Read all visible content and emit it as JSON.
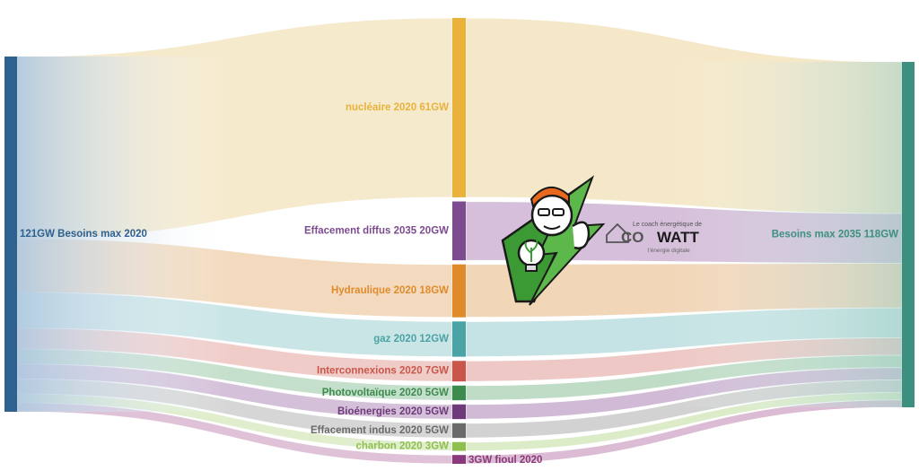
{
  "chart_data": {
    "type": "sankey",
    "source": {
      "label": "121GW Besoins max 2020",
      "value": 121,
      "color": "#2e6190"
    },
    "target": {
      "label": "Besoins max 2035 118GW",
      "value": 118,
      "color": "#3d8f80"
    },
    "nodes": [
      {
        "label": "nucléaire 2020 61GW",
        "value": 61,
        "color": "#e8b23b",
        "flow_color": "#efd9a4",
        "source_flow": true
      },
      {
        "label": "Effacement diffus 2035 20GW",
        "value": 20,
        "color": "#7d4b8f",
        "flow_color": "#b995c2",
        "source_flow": false
      },
      {
        "label": "Hydraulique 2020 18GW",
        "value": 18,
        "color": "#df8b2b",
        "flow_color": "#e9bb88",
        "source_flow": true
      },
      {
        "label": "gaz 2020 12GW",
        "value": 12,
        "color": "#4aa3a5",
        "flow_color": "#9fd0d2",
        "source_flow": true
      },
      {
        "label": "Interconnexions 2020 7GW",
        "value": 7,
        "color": "#c9564a",
        "flow_color": "#e3a39c",
        "source_flow": true
      },
      {
        "label": "Photovoltaïque 2020 5GW",
        "value": 5,
        "color": "#3d8b4e",
        "flow_color": "#94c4a0",
        "source_flow": true
      },
      {
        "label": "Bioénergies 2020 5GW",
        "value": 5,
        "color": "#6e3a7a",
        "flow_color": "#b08cba",
        "source_flow": true
      },
      {
        "label": "Effacement indus 2020 5GW",
        "value": 5,
        "color": "#6a6a6a",
        "flow_color": "#b4b4b4",
        "source_flow": true
      },
      {
        "label": "charbon 2020 3GW",
        "value": 3,
        "color": "#8fbf4e",
        "flow_color": "#c6e0a4",
        "source_flow": true
      },
      {
        "label": "3GW fioul 2020",
        "value": 3,
        "color": "#8a3a7a",
        "flow_color": "#c490b8",
        "source_flow": true
      }
    ],
    "title": "",
    "xlabel": "",
    "ylabel": "",
    "legend": "none",
    "grid": false
  },
  "logo": {
    "tagline": "Le coach énergétique de",
    "name_part1": "CO",
    "name_part2": "WATT",
    "subline": "l'énergie digitale",
    "icon": "coach-mascot-lightning-icon"
  }
}
